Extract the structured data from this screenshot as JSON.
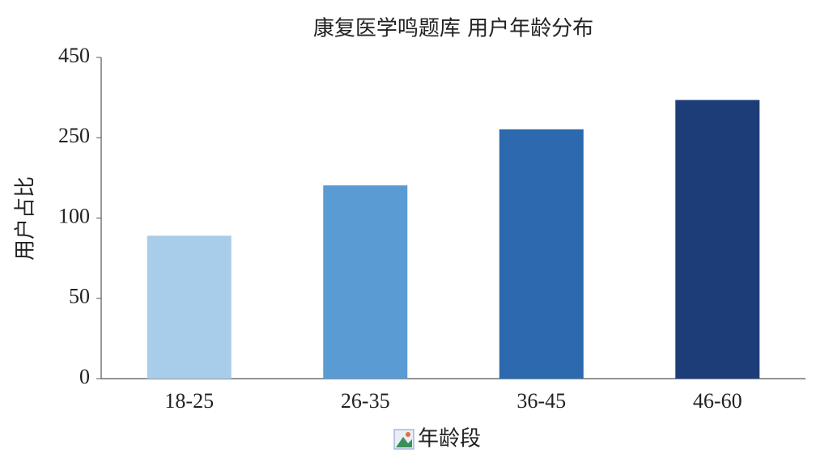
{
  "chart_data": {
    "type": "bar",
    "title": "康复医学鸣题库 用户年龄分布",
    "x_label": "年龄段",
    "y_label": "用户占比",
    "categories": [
      "18-25",
      "26-35",
      "36-45",
      "46-60"
    ],
    "values": [
      89,
      161,
      271,
      344
    ],
    "colors": [
      "#a8cdea",
      "#5b9bd3",
      "#2c69ae",
      "#1d3d78"
    ],
    "ylim": [
      0,
      450
    ],
    "yticks": [
      0,
      50,
      100,
      250,
      450
    ]
  }
}
